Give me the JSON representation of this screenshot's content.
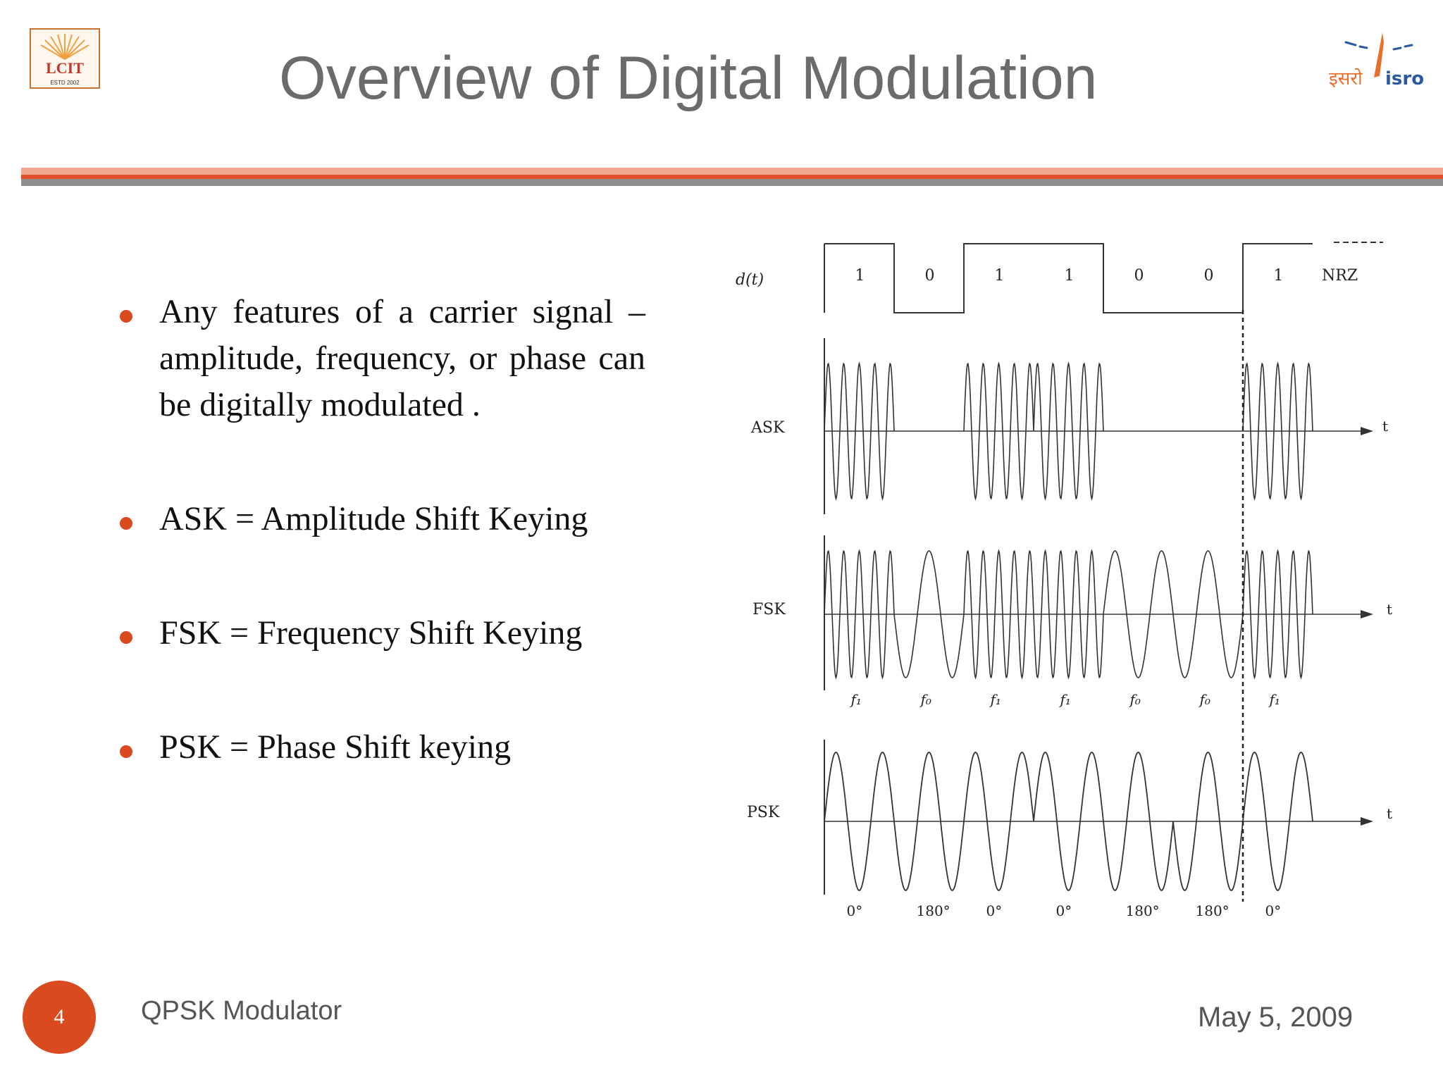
{
  "slide": {
    "title": "Overview of Digital Modulation",
    "bullets": [
      "Any features of a carrier signal – amplitude, frequency, or phase can be digitally modulated .",
      "ASK =  Amplitude Shift Keying",
      "FSK =  Frequency Shift Keying",
      "PSK = Phase Shift keying"
    ]
  },
  "logos": {
    "left_text": "LCIT",
    "left_subtext": "ESTD   2002",
    "right_hindi": "इसरो",
    "right_text": "isro"
  },
  "diagram": {
    "signal_label": "d(t)",
    "bits": [
      "1",
      "0",
      "1",
      "1",
      "0",
      "0",
      "1"
    ],
    "nrz_label": "NRZ",
    "rows": [
      "ASK",
      "FSK",
      "PSK"
    ],
    "time_label": "t",
    "fsk_freq_labels": [
      "f₁",
      "f₀",
      "f₁",
      "f₁",
      "f₀",
      "f₀",
      "f₁"
    ],
    "psk_phase_labels": [
      "0°",
      "180°",
      "0°",
      "0°",
      "180°",
      "180°",
      "0°"
    ]
  },
  "footer": {
    "page_number": "4",
    "left": "QPSK Modulator",
    "date": "May 5, 2009"
  },
  "colors": {
    "accent": "#d94a1f",
    "title": "#6b6b6b",
    "rule_light": "#f0a890",
    "rule_gray": "#8e8e8e"
  }
}
